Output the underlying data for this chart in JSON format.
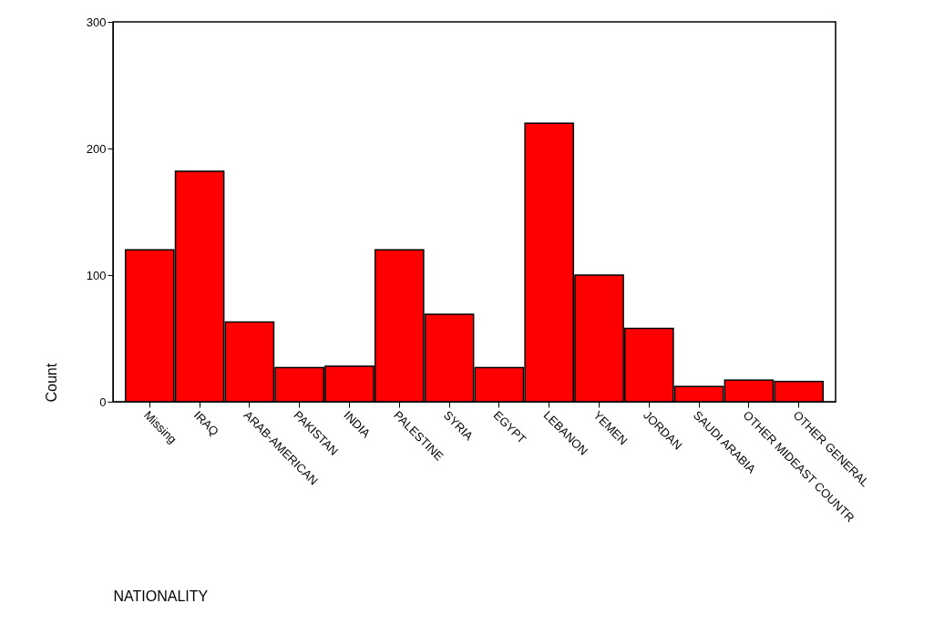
{
  "chart_data": {
    "type": "bar",
    "xlabel": "NATIONALITY",
    "ylabel": "Count",
    "categories": [
      "Missing",
      "IRAQ",
      "ARAB-AMERICAN",
      "PAKISTAN",
      "INDIA",
      "PALESTINE",
      "SYRIA",
      "EGYPT",
      "LEBANON",
      "YEMEN",
      "JORDAN",
      "SAUDI ARABIA",
      "OTHER MIDEAST COUNTR",
      "OTHER GENERAL"
    ],
    "values": [
      120,
      182,
      63,
      27,
      28,
      120,
      69,
      27,
      220,
      100,
      58,
      12,
      17,
      16
    ],
    "color": "#ff0000",
    "ylim": [
      0,
      300
    ],
    "yticks": [
      0,
      100,
      200,
      300
    ],
    "grid": false
  }
}
